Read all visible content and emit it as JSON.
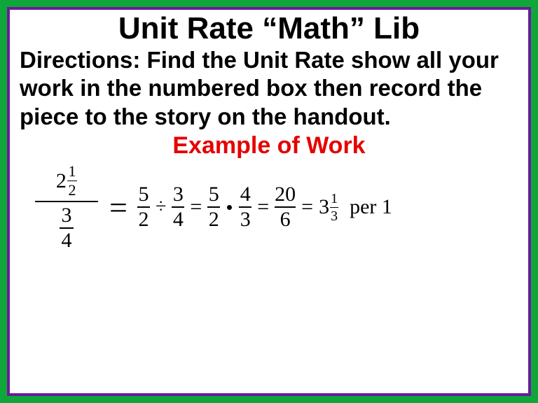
{
  "style": {
    "outer_border_color": "#0fa73a",
    "inner_border_color": "#6a1c9a",
    "background_color": "#ffffff",
    "title_color": "#000000",
    "directions_color": "#000000",
    "example_color": "#e60000",
    "math_color": "#000000",
    "font_family_text": "Comic Sans MS",
    "font_family_math": "Times New Roman",
    "title_fontsize": 44,
    "directions_fontsize": 33,
    "example_fontsize": 34
  },
  "title": "Unit Rate “Math” Lib",
  "directions": "Directions: Find the Unit Rate show all your work in the numbered box then record the piece to the story on the handout.",
  "example_label": "Example of Work",
  "equation": {
    "left_complex": {
      "numerator_mixed": {
        "whole": "2",
        "num": "1",
        "den": "2"
      },
      "denominator_frac": {
        "num": "3",
        "den": "4"
      }
    },
    "big_equals": "=",
    "steps": [
      {
        "type": "frac",
        "num": "5",
        "den": "2"
      },
      {
        "type": "op",
        "symbol": "÷"
      },
      {
        "type": "frac",
        "num": "3",
        "den": "4"
      },
      {
        "type": "eq",
        "symbol": "="
      },
      {
        "type": "frac",
        "num": "5",
        "den": "2"
      },
      {
        "type": "dot"
      },
      {
        "type": "frac",
        "num": "4",
        "den": "3"
      },
      {
        "type": "eq",
        "symbol": "="
      },
      {
        "type": "frac",
        "num": "20",
        "den": "6"
      },
      {
        "type": "eq",
        "symbol": "="
      },
      {
        "type": "mixed",
        "whole": "3",
        "num": "1",
        "den": "3"
      }
    ],
    "suffix": "per 1",
    "complex_fontsize_whole": 30,
    "complex_fontsize_small": 22,
    "complex_bar_width": 90,
    "step_fontsize": 30,
    "step_small_fontsize": 20,
    "step_bar_width": 18,
    "step_bar_width_wide": 30
  }
}
